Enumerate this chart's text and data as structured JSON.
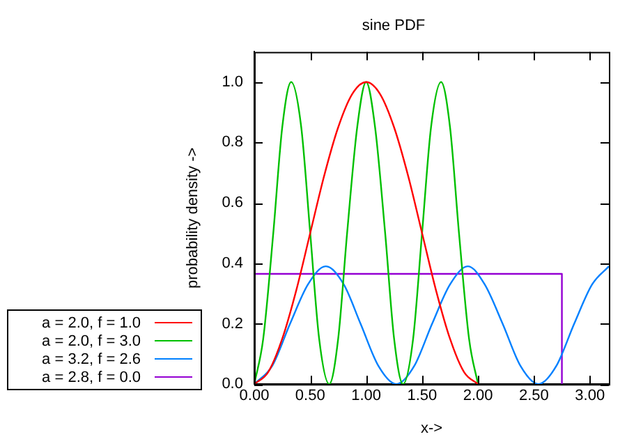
{
  "chart_data": {
    "type": "line",
    "title": "sine PDF",
    "xlabel": "x->",
    "ylabel": "probability density ->",
    "xlim": [
      0,
      3.17
    ],
    "ylim": [
      0,
      1.1
    ],
    "xticks": [
      {
        "value": 0,
        "label": "0.00"
      },
      {
        "value": 0.5,
        "label": "0.50"
      },
      {
        "value": 1,
        "label": "1.00"
      },
      {
        "value": 1.5,
        "label": "1.50"
      },
      {
        "value": 2,
        "label": "2.00"
      },
      {
        "value": 2.5,
        "label": "2.50"
      },
      {
        "value": 3,
        "label": "3.00"
      }
    ],
    "yticks": [
      {
        "value": 0,
        "label": "0.0"
      },
      {
        "value": 0.2,
        "label": "0.2"
      },
      {
        "value": 0.4,
        "label": "0.4"
      },
      {
        "value": 0.6,
        "label": "0.6"
      },
      {
        "value": 0.8,
        "label": "0.8"
      },
      {
        "value": 1,
        "label": "1.0"
      }
    ],
    "grid": false,
    "legend": "bottom left",
    "marker": "none",
    "line_style": "solid",
    "series": [
      {
        "name": "a = 2.0, f = 1.0",
        "color": "#ff0000",
        "x": [
          0,
          0.125,
          0.25,
          0.375,
          0.5,
          0.625,
          0.75,
          0.875,
          1,
          1.125,
          1.25,
          1.375,
          1.5,
          1.625,
          1.75,
          1.875,
          2
        ],
        "values": [
          0,
          0.04,
          0.15,
          0.31,
          0.5,
          0.69,
          0.85,
          0.96,
          1,
          0.96,
          0.85,
          0.69,
          0.5,
          0.31,
          0.15,
          0.04,
          0
        ]
      },
      {
        "name": "a = 2.0, f = 3.0",
        "color": "#00c000",
        "x": [
          0,
          0.08,
          0.17,
          0.25,
          0.33,
          0.42,
          0.5,
          0.58,
          0.67,
          0.75,
          0.83,
          0.92,
          1,
          1.08,
          1.17,
          1.25,
          1.33,
          1.42,
          1.5,
          1.58,
          1.67,
          1.75,
          1.83,
          1.92,
          2
        ],
        "values": [
          0,
          0.15,
          0.5,
          0.85,
          1,
          0.85,
          0.5,
          0.15,
          0,
          0.15,
          0.5,
          0.85,
          1,
          0.85,
          0.5,
          0.15,
          0,
          0.15,
          0.5,
          0.85,
          1,
          0.85,
          0.5,
          0.15,
          0
        ]
      },
      {
        "name": "a = 3.2, f = 2.6",
        "color": "#0080ff",
        "x": [
          0,
          0.16,
          0.32,
          0.48,
          0.64,
          0.8,
          0.95,
          1.11,
          1.27,
          1.43,
          1.59,
          1.75,
          1.91,
          2.06,
          2.22,
          2.38,
          2.54,
          2.7,
          2.86,
          3.02,
          3.17
        ],
        "values": [
          0,
          0.06,
          0.2,
          0.33,
          0.39,
          0.33,
          0.2,
          0.06,
          0,
          0.06,
          0.2,
          0.33,
          0.39,
          0.33,
          0.2,
          0.06,
          0,
          0.06,
          0.2,
          0.33,
          0.39
        ]
      },
      {
        "name": "a = 2.8, f = 0.0",
        "color": "#9400d3",
        "x": [
          0,
          2.75,
          2.75
        ],
        "values": [
          0.365,
          0.365,
          0
        ]
      }
    ]
  }
}
